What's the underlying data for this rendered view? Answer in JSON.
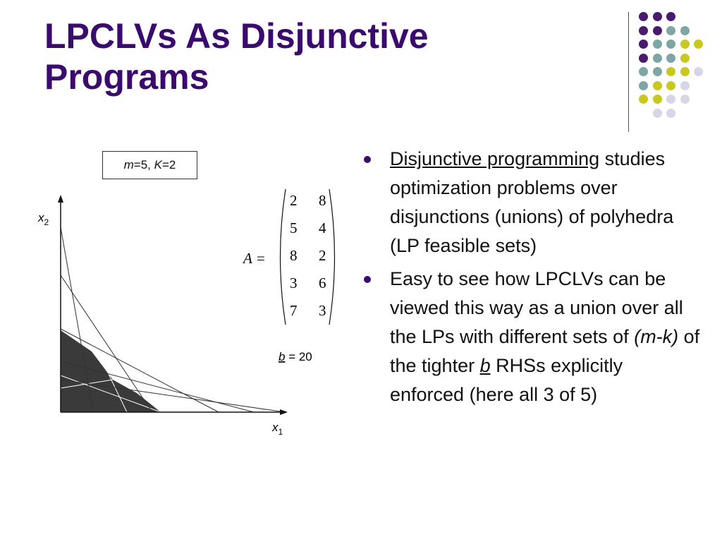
{
  "slide": {
    "title_line1": "LPCLVs As Disjunctive",
    "title_line2": "Programs"
  },
  "decoration": {
    "colors": {
      "purple": "#4a1a6e",
      "teal": "#7ea6a4",
      "olive": "#c9c81e",
      "lavender": "#d6d6e8"
    },
    "dot_grid": [
      [
        "purple",
        "purple",
        "purple",
        null,
        null
      ],
      [
        "purple",
        "purple",
        "teal",
        "teal",
        null
      ],
      [
        "purple",
        "teal",
        "teal",
        "olive",
        "olive"
      ],
      [
        "purple",
        "teal",
        "teal",
        "olive",
        null
      ],
      [
        "teal",
        "teal",
        "olive",
        "olive",
        "lavender"
      ],
      [
        "teal",
        "olive",
        "olive",
        "lavender",
        null
      ],
      [
        "olive",
        "olive",
        "lavender",
        "lavender",
        null
      ],
      [
        null,
        "lavender",
        "lavender",
        null,
        null
      ]
    ]
  },
  "figure": {
    "params": {
      "m_label": "m",
      "m_value": "=5, ",
      "k_label": "K",
      "k_value": "=2"
    },
    "x2_label": "x",
    "x2_sub": "2",
    "x1_label": "x",
    "x1_sub": "1",
    "matrix_name": "A",
    "matrix_eq": "=",
    "matrix_rows": [
      [
        2,
        8
      ],
      [
        5,
        4
      ],
      [
        8,
        2
      ],
      [
        3,
        6
      ],
      [
        7,
        3
      ]
    ],
    "b_label": "b",
    "b_rest": " = 20"
  },
  "bullets": [
    {
      "underlined": "Disjunctive programming",
      "rest": " studies optimization problems over disjunctions (unions) of polyhedra (LP feasible sets)"
    },
    {
      "part1": "Easy to see how LPCLVs can be viewed this way as a union over all the LPs with different sets of ",
      "italic": "(m-k)",
      "part2": " of the tighter ",
      "underlined_italic": "b",
      "part3": " RHSs explicitly enforced (here all 3 of 5)"
    }
  ]
}
